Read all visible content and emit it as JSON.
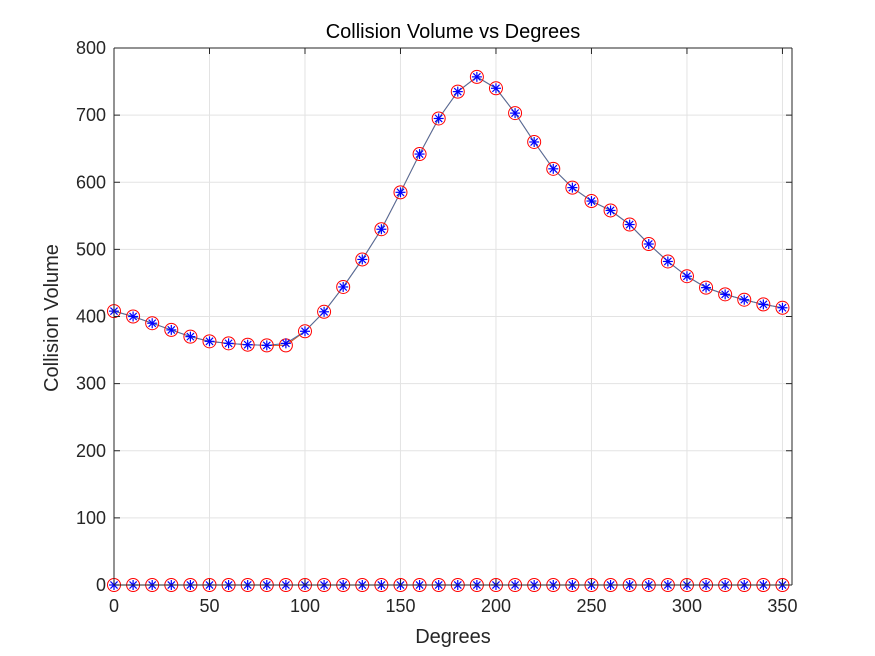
{
  "chart_data": {
    "type": "line",
    "title": "Collision Volume vs Degrees",
    "xlabel": "Degrees",
    "ylabel": "Collision Volume",
    "xlim": [
      0,
      355
    ],
    "ylim": [
      0,
      800
    ],
    "xticks": [
      0,
      50,
      100,
      150,
      200,
      250,
      300,
      350
    ],
    "yticks": [
      0,
      100,
      200,
      300,
      400,
      500,
      600,
      700,
      800
    ],
    "grid": true,
    "x": [
      0,
      10,
      20,
      30,
      40,
      50,
      60,
      70,
      80,
      90,
      100,
      110,
      120,
      130,
      140,
      150,
      160,
      170,
      180,
      190,
      200,
      210,
      220,
      230,
      240,
      250,
      260,
      270,
      280,
      290,
      300,
      310,
      320,
      330,
      340,
      350
    ],
    "series": [
      {
        "values": [
          408,
          400,
          390,
          380,
          370,
          363,
          360,
          358,
          357,
          357,
          378,
          407,
          444,
          485,
          530,
          585,
          642,
          695,
          735,
          757,
          740,
          703,
          660,
          620,
          592,
          572,
          558,
          537,
          508,
          482,
          460,
          443,
          433,
          425,
          418,
          413
        ],
        "color": "#d95319",
        "marker": "circle-red"
      },
      {
        "values": [
          408,
          400,
          390,
          380,
          370,
          363,
          360,
          358,
          357,
          360,
          378,
          407,
          444,
          485,
          530,
          585,
          642,
          695,
          735,
          757,
          740,
          703,
          660,
          620,
          592,
          572,
          558,
          537,
          508,
          482,
          460,
          443,
          433,
          425,
          418,
          413
        ],
        "color": "#4a6fa5",
        "marker": "asterisk-blue"
      },
      {
        "values": [
          0,
          0,
          0,
          0,
          0,
          0,
          0,
          0,
          0,
          0,
          0,
          0,
          0,
          0,
          0,
          0,
          0,
          0,
          0,
          0,
          0,
          0,
          0,
          0,
          0,
          0,
          0,
          0,
          0,
          0,
          0,
          0,
          0,
          0,
          0,
          0
        ],
        "color": "#d95319",
        "marker": "circle-red"
      },
      {
        "values": [
          0,
          0,
          0,
          0,
          0,
          0,
          0,
          0,
          0,
          0,
          0,
          0,
          0,
          0,
          0,
          0,
          0,
          0,
          0,
          0,
          0,
          0,
          0,
          0,
          0,
          0,
          0,
          0,
          0,
          0,
          0,
          0,
          0,
          0,
          0,
          0
        ],
        "color": "#4a6fa5",
        "marker": "asterisk-blue"
      }
    ],
    "colors": {
      "circle": "#ff0000",
      "asterisk": "#0000ff",
      "axis": "#262626"
    }
  }
}
